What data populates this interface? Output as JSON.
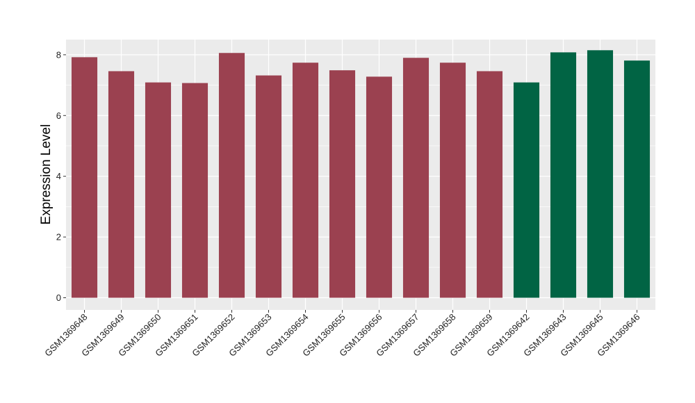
{
  "chart_data": {
    "type": "bar",
    "ylabel": "Expression Level",
    "xlabel": "",
    "title": "",
    "ylim": [
      -0.4,
      8.5
    ],
    "yticks": [
      0,
      2,
      4,
      6,
      8
    ],
    "grid": true,
    "categories": [
      "GSM1369648",
      "GSM1369649",
      "GSM1369650",
      "GSM1369651",
      "GSM1369652",
      "GSM1369653",
      "GSM1369654",
      "GSM1369655",
      "GSM1369656",
      "GSM1369657",
      "GSM1369658",
      "GSM1369659",
      "GSM1369642",
      "GSM1369643",
      "GSM1369645",
      "GSM1369646"
    ],
    "values": [
      7.92,
      7.46,
      7.09,
      7.07,
      8.06,
      7.32,
      7.74,
      7.49,
      7.28,
      7.9,
      7.74,
      7.46,
      7.09,
      8.08,
      8.15,
      7.81
    ],
    "bar_colors": [
      "#9b4150",
      "#9b4150",
      "#9b4150",
      "#9b4150",
      "#9b4150",
      "#9b4150",
      "#9b4150",
      "#9b4150",
      "#9b4150",
      "#9b4150",
      "#9b4150",
      "#9b4150",
      "#016444",
      "#016444",
      "#016444",
      "#016444"
    ],
    "panel_background": "#ebebeb",
    "grid_color": "#ffffff"
  }
}
